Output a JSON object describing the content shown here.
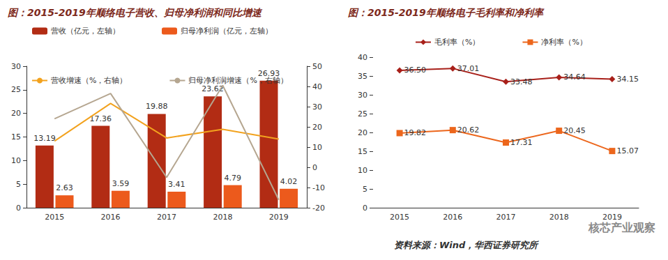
{
  "chart_data": [
    {
      "type": "bar",
      "title": "图：2015-2019年顺络电子营收、归母净利润和同比增速",
      "categories": [
        "2015",
        "2016",
        "2017",
        "2018",
        "2019"
      ],
      "ylim": [
        0,
        30
      ],
      "yticks": [
        0,
        5,
        10,
        15,
        20,
        25,
        30
      ],
      "y2lim": [
        -20,
        50
      ],
      "y2ticks": [
        -20,
        -10,
        0,
        10,
        20,
        30,
        40,
        50
      ],
      "grid": false,
      "legend": "top",
      "series": [
        {
          "name": "营收（亿元，左轴）",
          "type": "bar",
          "color": "#B22C14",
          "data_labels": true,
          "values": [
            13.19,
            17.36,
            19.88,
            23.62,
            26.93
          ]
        },
        {
          "name": "归母净利润（亿元，左轴）",
          "type": "bar",
          "color": "#EC5A1C",
          "data_labels": true,
          "values": [
            2.63,
            3.59,
            3.41,
            4.79,
            4.02
          ]
        },
        {
          "name": "营收增速（%，右轴）",
          "type": "line",
          "axis": "y2",
          "color": "#F2A21E",
          "marker": "none",
          "values": [
            13.0,
            31.6,
            14.5,
            18.8,
            14.0
          ]
        },
        {
          "name": "归母净利润增速（%，右轴）",
          "type": "line",
          "axis": "y2",
          "color": "#B5A690",
          "marker": "none",
          "values": [
            24.0,
            36.5,
            -5.0,
            40.5,
            -16.1
          ]
        }
      ]
    },
    {
      "type": "line",
      "title": "图：2015-2019年顺络电子毛利率和净利率",
      "categories": [
        "2015",
        "2016",
        "2017",
        "2018",
        "2019"
      ],
      "ylim": [
        0,
        40
      ],
      "yticks": [
        0,
        5,
        10,
        15,
        20,
        25,
        30,
        35,
        40
      ],
      "grid": false,
      "legend": "top",
      "series": [
        {
          "name": "毛利率（%）",
          "color": "#A8201A",
          "marker": "diamond",
          "data_labels": true,
          "values": [
            36.5,
            37.01,
            33.48,
            34.64,
            34.15
          ],
          "value_labels": [
            "36.50",
            "37.01",
            "33.48",
            "34.64",
            "34.15"
          ]
        },
        {
          "name": "净利率（%）",
          "color": "#EC661C",
          "marker": "square",
          "data_labels": true,
          "values": [
            19.82,
            20.62,
            17.31,
            20.45,
            15.07
          ]
        }
      ],
      "annotations": [
        "资料来源：Wind，华西证券研究所",
        "核芯产业观察"
      ]
    }
  ]
}
